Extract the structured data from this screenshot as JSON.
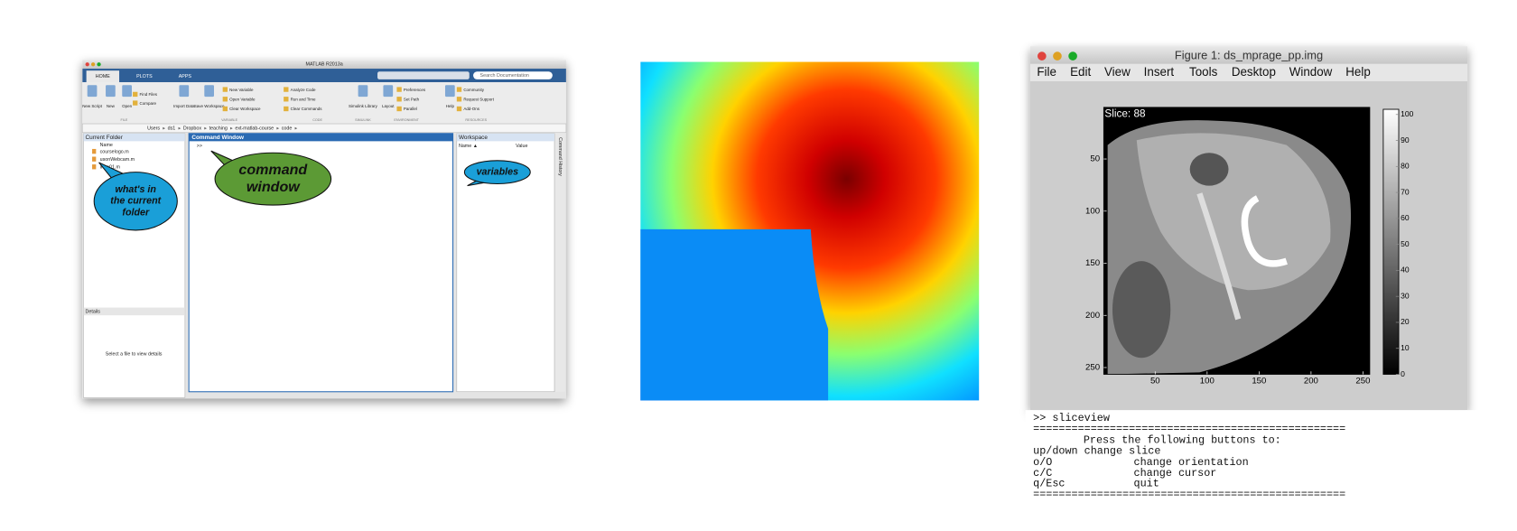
{
  "matlab": {
    "title": "MATLAB R2013a",
    "tabs": [
      "HOME",
      "PLOTS",
      "APPS"
    ],
    "search": "Search Documentation",
    "buttons": [
      "New Script",
      "New",
      "Open",
      "Find Files",
      "Compare",
      "Import Data",
      "Save Workspace",
      "New Variable",
      "Open Variable",
      "Clear Workspace",
      "Analyze Code",
      "Run and Time",
      "Clear Commands",
      "Simulink Library",
      "Layout",
      "Preferences",
      "Set Path",
      "Parallel",
      "Help",
      "Community",
      "Request Support",
      "Add-Ons"
    ],
    "sections": [
      "FILE",
      "VARIABLE",
      "CODE",
      "SIMULINK",
      "ENVIRONMENT",
      "RESOURCES"
    ],
    "path": [
      "Users",
      "ds1",
      "Dropbox",
      "teaching",
      "ext-matlab-course",
      "code"
    ],
    "current_folder": {
      "title": "Current Folder",
      "column": "Name",
      "files": [
        "courselogo.m",
        "usonWebcam.m",
        "intro01.m"
      ],
      "details": "Details",
      "details_text": "Select a file to view details"
    },
    "command_window": {
      "title": "Command Window",
      "prompt": ">>"
    },
    "workspace": {
      "title": "Workspace",
      "columns": [
        "Name ▲",
        "Value"
      ]
    },
    "history": "Command History",
    "callouts": {
      "folder": [
        "what's in",
        "the current",
        "folder"
      ],
      "command": [
        "command",
        "window"
      ],
      "variables": [
        "variables"
      ]
    }
  },
  "figure": {
    "title": "Figure 1: ds_mprage_pp.img",
    "menu": [
      "File",
      "Edit",
      "View",
      "Insert",
      "Tools",
      "Desktop",
      "Window",
      "Help"
    ],
    "slice_label": "Slice: 88",
    "xlim": [
      0.5,
      256.5
    ],
    "ylim": [
      0.5,
      256.5
    ],
    "xticks": [
      50,
      100,
      150,
      200,
      250
    ],
    "yticks": [
      50,
      100,
      150,
      200,
      250
    ],
    "clim": [
      0,
      102
    ],
    "cticks": [
      0,
      10,
      20,
      30,
      40,
      50,
      60,
      70,
      80,
      90,
      100
    ]
  },
  "console": {
    "lines": [
      ">> sliceview",
      "=================================================",
      "Press the following buttons to:",
      "up/down change slice"
    ],
    "keys": [
      [
        "o/O",
        "change orientation"
      ],
      [
        "c/C",
        "change cursor"
      ],
      [
        "q/Esc",
        "quit"
      ]
    ],
    "footer": "================================================="
  }
}
